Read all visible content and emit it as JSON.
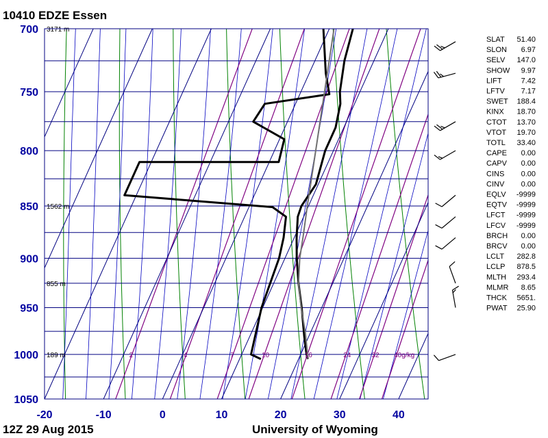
{
  "header": {
    "title": "10410 EDZE Essen"
  },
  "footer": {
    "left": "12Z 29 Aug 2015",
    "right": "University of Wyoming"
  },
  "colors": {
    "isobar": "#000080",
    "isotherm": "#000080",
    "dry_adiabat": "#008000",
    "moist_adiabat": "#0000c0",
    "mixing_ratio": "#800080",
    "temperature": "#000000",
    "dewpoint": "#000000",
    "parcel": "#707070"
  },
  "chart_data": {
    "type": "line",
    "title": "10410 EDZE Essen",
    "x_axis": {
      "ticks": [
        -20,
        -10,
        0,
        10,
        20,
        30,
        40
      ],
      "range": [
        -20,
        45
      ]
    },
    "y_axis": {
      "ticks": [
        700,
        750,
        800,
        850,
        900,
        950,
        1000,
        1050
      ],
      "range": [
        700,
        1050
      ],
      "scale": "log-pressure"
    },
    "height_labels": [
      {
        "p": 700,
        "text": "3171 m"
      },
      {
        "p": 850,
        "text": "1562 m"
      },
      {
        "p": 925,
        "text": "855 m"
      },
      {
        "p": 1000,
        "text": "189 m"
      }
    ],
    "mixing_ratio_labels": [
      "2",
      "4",
      "7",
      "10",
      "16",
      "24",
      "32",
      "40g/kg"
    ],
    "mixing_ratio_values": [
      2,
      4,
      7,
      10,
      16,
      24,
      32,
      40
    ],
    "series": [
      {
        "name": "",
        "kind": "temperature",
        "points": [
          {
            "p": 1005,
            "t": 21.6
          },
          {
            "p": 1000,
            "t": 21.0
          },
          {
            "p": 980,
            "t": 19.2
          },
          {
            "p": 950,
            "t": 16.6
          },
          {
            "p": 925,
            "t": 14.2
          },
          {
            "p": 900,
            "t": 12.0
          },
          {
            "p": 880,
            "t": 10.4
          },
          {
            "p": 860,
            "t": 9.0
          },
          {
            "p": 850,
            "t": 8.8
          },
          {
            "p": 830,
            "t": 9.6
          },
          {
            "p": 800,
            "t": 8.6
          },
          {
            "p": 780,
            "t": 8.6
          },
          {
            "p": 760,
            "t": 7.6
          },
          {
            "p": 750,
            "t": 6.6
          },
          {
            "p": 725,
            "t": 5.0
          },
          {
            "p": 700,
            "t": 4.0
          }
        ]
      },
      {
        "name": "",
        "kind": "dewpoint",
        "points": [
          {
            "p": 1005,
            "t": 13.6
          },
          {
            "p": 1000,
            "t": 11.6
          },
          {
            "p": 950,
            "t": 9.8
          },
          {
            "p": 900,
            "t": 9.0
          },
          {
            "p": 880,
            "t": 8.2
          },
          {
            "p": 860,
            "t": 7.0
          },
          {
            "p": 851,
            "t": 4.0
          },
          {
            "p": 840,
            "t": -22.0
          },
          {
            "p": 810,
            "t": -22.0
          },
          {
            "p": 810,
            "t": 1.6
          },
          {
            "p": 790,
            "t": 0.8
          },
          {
            "p": 775,
            "t": -5.8
          },
          {
            "p": 760,
            "t": -5.2
          },
          {
            "p": 752,
            "t": 5.0
          },
          {
            "p": 735,
            "t": 2.8
          },
          {
            "p": 700,
            "t": -1.0
          }
        ]
      },
      {
        "name": "",
        "kind": "parcel",
        "points": [
          {
            "p": 1005,
            "t": 21.6
          },
          {
            "p": 975,
            "t": 19.0
          },
          {
            "p": 950,
            "t": 16.5
          },
          {
            "p": 925,
            "t": 14.2
          },
          {
            "p": 900,
            "t": 12.5
          },
          {
            "p": 878.5,
            "t": 11.4
          },
          {
            "p": 850,
            "t": 9.8
          },
          {
            "p": 800,
            "t": 7.0
          },
          {
            "p": 750,
            "t": 4.0
          },
          {
            "p": 700,
            "t": 0.8
          }
        ]
      }
    ],
    "wind_barbs": [
      {
        "p": 1000,
        "dir": 250,
        "speed": 10
      },
      {
        "p": 950,
        "dir": 350,
        "speed": 15
      },
      {
        "p": 925,
        "dir": 340,
        "speed": 10
      },
      {
        "p": 880,
        "dir": 230,
        "speed": 10
      },
      {
        "p": 860,
        "dir": 230,
        "speed": 10
      },
      {
        "p": 840,
        "dir": 230,
        "speed": 10
      },
      {
        "p": 800,
        "dir": 240,
        "speed": 15
      },
      {
        "p": 775,
        "dir": 240,
        "speed": 25
      },
      {
        "p": 735,
        "dir": 255,
        "speed": 25
      },
      {
        "p": 710,
        "dir": 240,
        "speed": 25
      }
    ],
    "indices": [
      {
        "key": "SLAT",
        "value": "51.40"
      },
      {
        "key": "SLON",
        "value": "6.97"
      },
      {
        "key": "SELV",
        "value": "147.0"
      },
      {
        "key": "SHOW",
        "value": "9.97"
      },
      {
        "key": "LIFT",
        "value": "7.42"
      },
      {
        "key": "LFTV",
        "value": "7.17"
      },
      {
        "key": "SWET",
        "value": "188.4"
      },
      {
        "key": "KINX",
        "value": "18.70"
      },
      {
        "key": "CTOT",
        "value": "13.70"
      },
      {
        "key": "VTOT",
        "value": "19.70"
      },
      {
        "key": "TOTL",
        "value": "33.40"
      },
      {
        "key": "CAPE",
        "value": "0.00"
      },
      {
        "key": "CAPV",
        "value": "0.00"
      },
      {
        "key": "CINS",
        "value": "0.00"
      },
      {
        "key": "CINV",
        "value": "0.00"
      },
      {
        "key": "EQLV",
        "value": "-9999"
      },
      {
        "key": "EQTV",
        "value": "-9999"
      },
      {
        "key": "LFCT",
        "value": "-9999"
      },
      {
        "key": "LFCV",
        "value": "-9999"
      },
      {
        "key": "BRCH",
        "value": "0.00"
      },
      {
        "key": "BRCV",
        "value": "0.00"
      },
      {
        "key": "LCLT",
        "value": "282.8"
      },
      {
        "key": "LCLP",
        "value": "878.5"
      },
      {
        "key": "MLTH",
        "value": "293.4"
      },
      {
        "key": "MLMR",
        "value": "8.65"
      },
      {
        "key": "THCK",
        "value": "5651."
      },
      {
        "key": "PWAT",
        "value": "25.90"
      }
    ]
  }
}
